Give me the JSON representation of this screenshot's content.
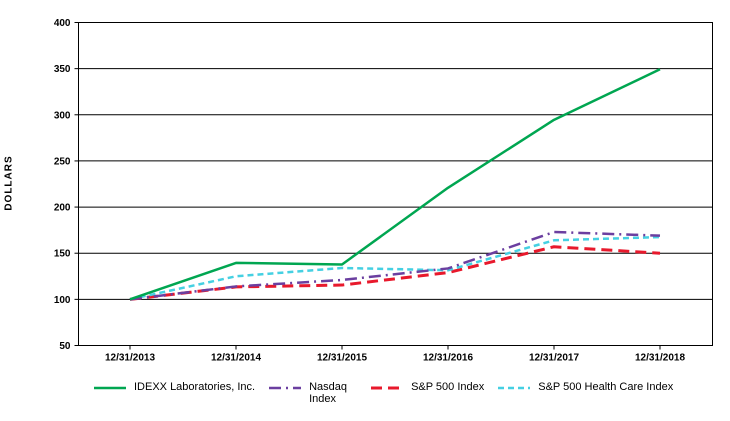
{
  "chart_data": {
    "type": "line",
    "title": "",
    "xlabel": "",
    "ylabel": "DOLLARS",
    "ylim": [
      50,
      400
    ],
    "ytick_step": 50,
    "ytick_labels": [
      "50",
      "100",
      "150",
      "200",
      "250",
      "300",
      "350",
      "400"
    ],
    "grid": "horizontal",
    "legend_position": "bottom",
    "categories": [
      "12/31/2013",
      "12/31/2014",
      "12/31/2015",
      "12/31/2016",
      "12/31/2017",
      "12/31/2018"
    ],
    "series": [
      {
        "name": "IDEXX Laboratories, Inc.",
        "color": "#00A651",
        "style": "solid",
        "values": [
          100,
          139.5,
          137.8,
          220.9,
          294.5,
          349.3
        ]
      },
      {
        "name": "Nasdaq Index",
        "color": "#6B3FA0",
        "style": "dash-dot",
        "values": [
          100,
          114,
          121,
          133.5,
          173,
          169
        ]
      },
      {
        "name": "S&P 500 Index",
        "color": "#E8192C",
        "style": "long-dash",
        "values": [
          100,
          113.5,
          115.5,
          129,
          157,
          150
        ]
      },
      {
        "name": "S&P 500 Health Care Index",
        "color": "#45D0E2",
        "style": "short-dash",
        "values": [
          100,
          125,
          134,
          131.5,
          164,
          167.5
        ]
      }
    ]
  }
}
